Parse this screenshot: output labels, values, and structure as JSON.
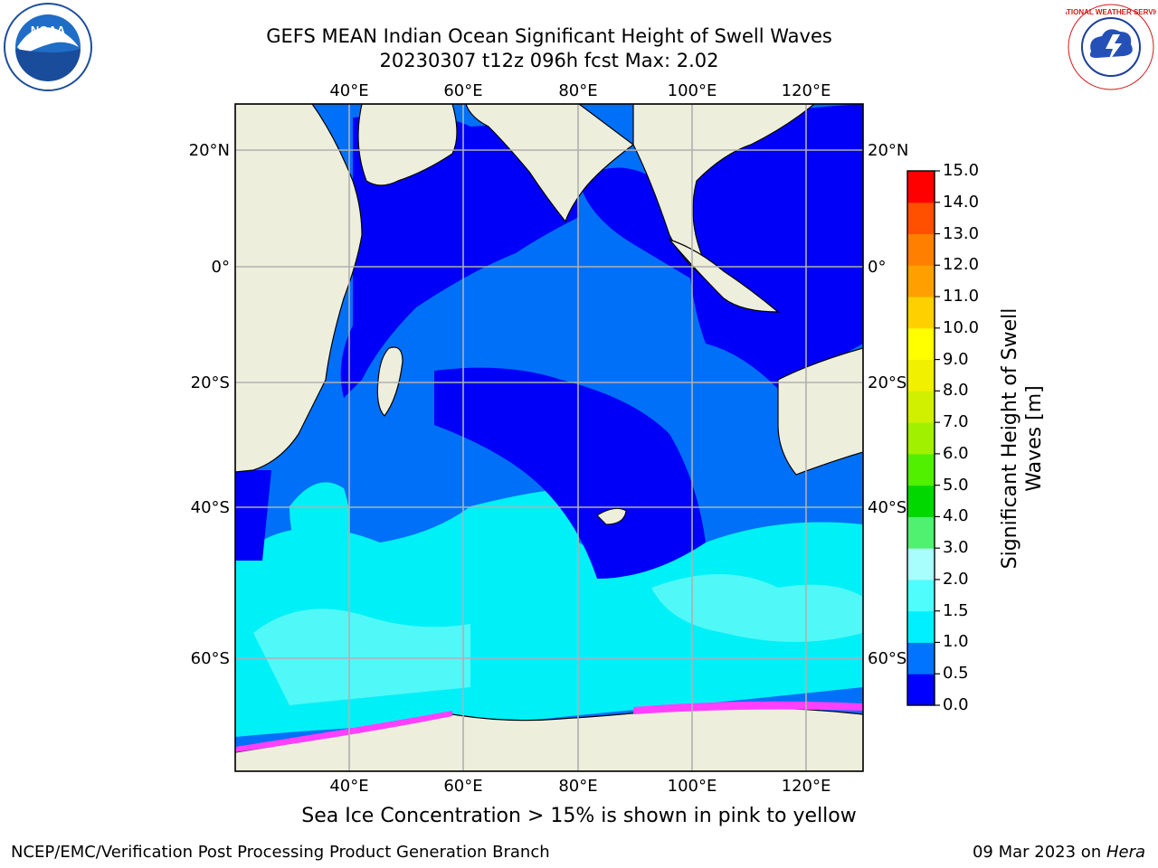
{
  "header": {
    "title_line1": "GEFS MEAN Indian Ocean Significant Height of Swell Waves",
    "title_line2": "20230307 t12z 096h fcst   Max: 2.02"
  },
  "logos": {
    "left": {
      "name": "noaa-logo",
      "text": "NOAA"
    },
    "right": {
      "name": "nws-logo",
      "text": "NATIONAL WEATHER SERVICE"
    }
  },
  "map": {
    "lon_labels": [
      "40°E",
      "60°E",
      "80°E",
      "100°E",
      "120°E"
    ],
    "lat_labels_left": [
      "20°N",
      "0°",
      "20°S",
      "40°S",
      "60°S"
    ],
    "lat_labels_right": [
      "20°N",
      "0°",
      "20°S",
      "40°S",
      "60°S"
    ],
    "colors": {
      "land": "#eeeedd",
      "ocean_0_05": "#0000f8",
      "ocean_05_1": "#0070f8",
      "ocean_1_15": "#00f0f8",
      "ocean_15_2": "#50f8f8",
      "ice": "#ff40ff",
      "grid": "#b0b0b0"
    }
  },
  "colorbar": {
    "ticks": [
      "0.0",
      "0.5",
      "1.0",
      "1.5",
      "2.0",
      "3.0",
      "4.0",
      "5.0",
      "6.0",
      "7.0",
      "8.0",
      "9.0",
      "10.0",
      "11.0",
      "12.0",
      "13.0",
      "14.0",
      "15.0"
    ],
    "colors": [
      "#0000ff",
      "#0074ff",
      "#00f0ff",
      "#50fdfd",
      "#a8fdfd",
      "#50f070",
      "#00d800",
      "#50f000",
      "#a0f000",
      "#d0f000",
      "#f0f000",
      "#ffff00",
      "#ffd000",
      "#ffa000",
      "#ff8000",
      "#ff5000",
      "#ff0000"
    ],
    "title_line1": "Significant Height of Swell",
    "title_line2": "Waves [m]"
  },
  "notes": {
    "ice_note": "Sea Ice Concentration > 15% is shown in pink to yellow"
  },
  "footer": {
    "left": "NCEP/EMC/Verification Post Processing Product Generation Branch",
    "right_date": "09 Mar 2023 on ",
    "right_machine": "Hera"
  }
}
